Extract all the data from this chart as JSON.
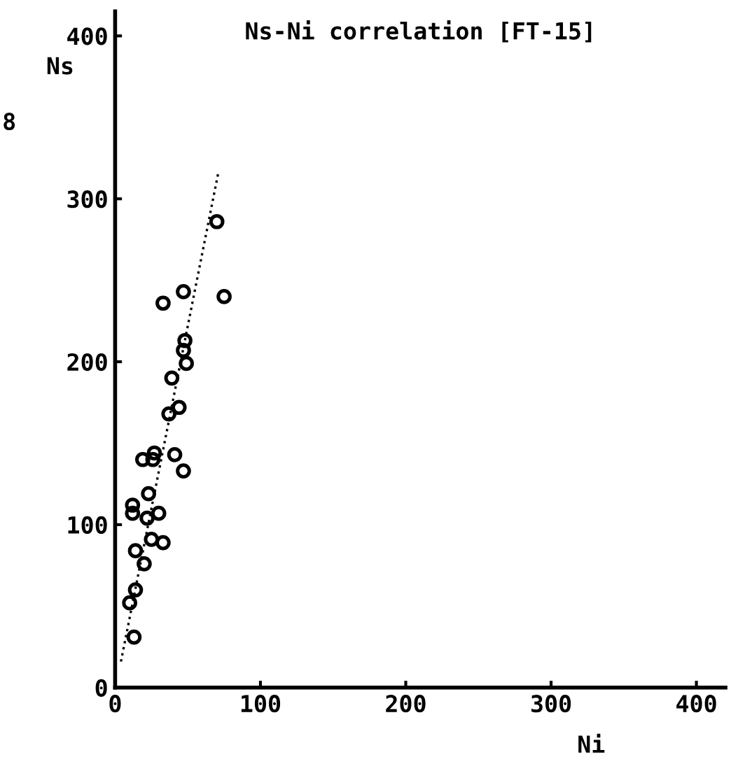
{
  "chart_data": {
    "type": "scatter",
    "title": "Ns-Ni correlation [FT-15]",
    "xlabel": "Ni",
    "ylabel": "Ns",
    "annotations": [
      "8"
    ],
    "xlim": [
      0,
      420
    ],
    "ylim": [
      0,
      415
    ],
    "xticks": [
      0,
      100,
      200,
      300,
      400
    ],
    "yticks": [
      0,
      100,
      200,
      300,
      400
    ],
    "grid": false,
    "legend": false,
    "marker": "circle",
    "series": [
      {
        "color": "#000000",
        "x": [
          70,
          75,
          47,
          33,
          48,
          47,
          49,
          39,
          44,
          37,
          19,
          27,
          26,
          41,
          47,
          23,
          12,
          12,
          30,
          22,
          25,
          33,
          14,
          20,
          14,
          10,
          13
        ],
        "values": [
          286,
          240,
          243,
          236,
          213,
          207,
          199,
          190,
          172,
          168,
          140,
          144,
          140,
          143,
          133,
          119,
          112,
          107,
          107,
          104,
          91,
          89,
          84,
          76,
          60,
          52,
          31
        ]
      },
      {
        "type": "line",
        "color": "#000000",
        "marker": "none",
        "line_style": "dotted",
        "x": [
          4,
          71
        ],
        "values": [
          16,
          316
        ]
      }
    ]
  }
}
